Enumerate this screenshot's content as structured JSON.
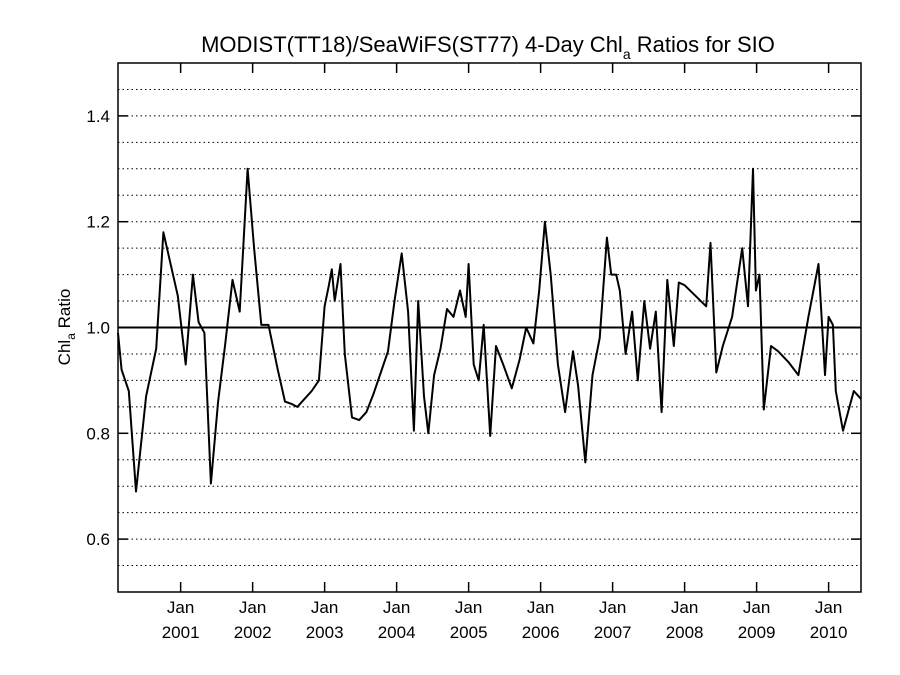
{
  "chart_data": {
    "type": "line",
    "title": {
      "main": "MODIST(TT18)/SeaWiFS(ST77) 4-Day Chl",
      "sub": "a",
      "tail": " Ratios for SIO"
    },
    "ylabel": {
      "main": "Chl",
      "sub": "a",
      "tail": " Ratio"
    },
    "ylim": [
      0.5,
      1.5
    ],
    "xlim": [
      2000.13,
      2010.45
    ],
    "grid": {
      "horizontal_dotted_step": 0.05,
      "style": "dotted"
    },
    "reference_line": 1.0,
    "y_ticks": [
      {
        "value": 0.6,
        "label": "0.6"
      },
      {
        "value": 0.8,
        "label": "0.8"
      },
      {
        "value": 1.0,
        "label": "1.0"
      },
      {
        "value": 1.2,
        "label": "1.2"
      },
      {
        "value": 1.4,
        "label": "1.4"
      }
    ],
    "x_ticks": [
      {
        "value": 2001.0,
        "month": "Jan",
        "year": "2001"
      },
      {
        "value": 2002.0,
        "month": "Jan",
        "year": "2002"
      },
      {
        "value": 2003.0,
        "month": "Jan",
        "year": "2003"
      },
      {
        "value": 2004.0,
        "month": "Jan",
        "year": "2004"
      },
      {
        "value": 2005.0,
        "month": "Jan",
        "year": "2005"
      },
      {
        "value": 2006.0,
        "month": "Jan",
        "year": "2006"
      },
      {
        "value": 2007.0,
        "month": "Jan",
        "year": "2007"
      },
      {
        "value": 2008.0,
        "month": "Jan",
        "year": "2008"
      },
      {
        "value": 2009.0,
        "month": "Jan",
        "year": "2009"
      },
      {
        "value": 2010.0,
        "month": "Jan",
        "year": "2010"
      }
    ],
    "series": [
      {
        "x": [
          2000.13,
          2000.18,
          2000.28,
          2000.38,
          2000.52,
          2000.66,
          2000.76,
          2000.96,
          2001.07,
          2001.17,
          2001.25,
          2001.33,
          2001.42,
          2001.52,
          2001.62,
          2001.72,
          2001.82,
          2001.93,
          2002.02,
          2002.12,
          2002.22,
          2002.35,
          2002.45,
          2002.55,
          2002.62,
          2002.72,
          2002.82,
          2002.92,
          2003.0,
          2003.06,
          2003.1,
          2003.14,
          2003.22,
          2003.28,
          2003.38,
          2003.48,
          2003.58,
          2003.68,
          2003.78,
          2003.88,
          2003.97,
          2004.07,
          2004.16,
          2004.24,
          2004.3,
          2004.38,
          2004.44,
          2004.52,
          2004.61,
          2004.7,
          2004.79,
          2004.88,
          2004.96,
          2005.0,
          2005.07,
          2005.14,
          2005.21,
          2005.3,
          2005.38,
          2005.48,
          2005.6,
          2005.71,
          2005.8,
          2005.9,
          2005.98,
          2006.06,
          2006.14,
          2006.24,
          2006.34,
          2006.45,
          2006.52,
          2006.62,
          2006.72,
          2006.82,
          2006.92,
          2006.98,
          2007.05,
          2007.1,
          2007.18,
          2007.27,
          2007.35,
          2007.44,
          2007.52,
          2007.6,
          2007.68,
          2007.76,
          2007.85,
          2007.92,
          2008.0,
          2008.3,
          2008.36,
          2008.44,
          2008.53,
          2008.66,
          2008.8,
          2008.88,
          2008.95,
          2008.99,
          2009.04,
          2009.1,
          2009.2,
          2009.3,
          2009.44,
          2009.58,
          2009.72,
          2009.86,
          2009.95,
          2010.0,
          2010.06,
          2010.1,
          2010.2,
          2010.35,
          2010.45
        ],
        "y": [
          0.99,
          0.92,
          0.88,
          0.69,
          0.87,
          0.96,
          1.18,
          1.06,
          0.93,
          1.1,
          1.01,
          0.99,
          0.705,
          0.86,
          0.97,
          1.09,
          1.03,
          1.3,
          1.15,
          1.005,
          1.005,
          0.92,
          0.86,
          0.855,
          0.85,
          0.865,
          0.88,
          0.9,
          1.04,
          1.08,
          1.11,
          1.05,
          1.12,
          0.95,
          0.83,
          0.825,
          0.84,
          0.875,
          0.915,
          0.955,
          1.05,
          1.14,
          1.03,
          0.805,
          1.05,
          0.87,
          0.8,
          0.91,
          0.96,
          1.035,
          1.02,
          1.07,
          1.02,
          1.12,
          0.93,
          0.9,
          1.005,
          0.795,
          0.965,
          0.93,
          0.885,
          0.94,
          1.0,
          0.97,
          1.07,
          1.2,
          1.1,
          0.93,
          0.84,
          0.955,
          0.89,
          0.745,
          0.91,
          0.98,
          1.17,
          1.1,
          1.1,
          1.07,
          0.95,
          1.03,
          0.9,
          1.05,
          0.96,
          1.03,
          0.84,
          1.09,
          0.965,
          1.085,
          1.08,
          1.04,
          1.16,
          0.915,
          0.965,
          1.02,
          1.15,
          1.04,
          1.3,
          1.07,
          1.1,
          0.845,
          0.965,
          0.955,
          0.935,
          0.91,
          1.02,
          1.12,
          0.91,
          1.02,
          1.005,
          0.88,
          0.805,
          0.88,
          0.865
        ]
      }
    ]
  }
}
